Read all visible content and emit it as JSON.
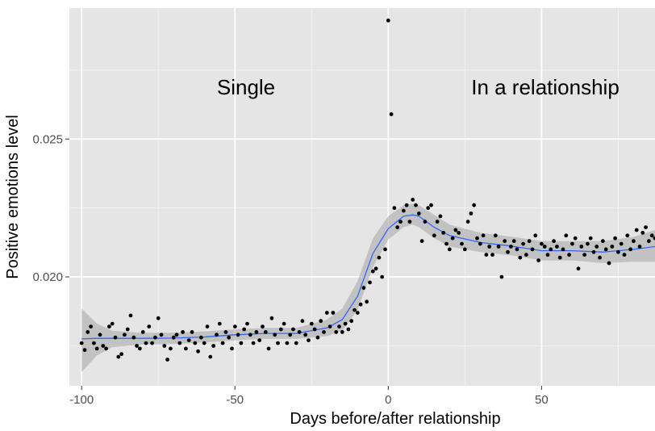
{
  "chart_data": {
    "type": "scatter",
    "xlabel": "Days before/after relationship",
    "ylabel": "Positive emotions level",
    "xlim": [
      -104,
      87
    ],
    "ylim": [
      0.01605,
      0.02975
    ],
    "x_ticks": [
      -100,
      -50,
      0,
      50
    ],
    "x_tick_labels": [
      "-100",
      "-50",
      "0",
      "50"
    ],
    "y_ticks": [
      0.02,
      0.025
    ],
    "y_tick_labels": [
      "0.020",
      "0.025"
    ],
    "grid": true,
    "annotations": [
      {
        "text": "Single",
        "x": -50,
        "y": 0.0277
      },
      {
        "text": "In a relationship",
        "x": 43,
        "y": 0.0277
      }
    ],
    "colors": {
      "panel": "#e5e5e5",
      "grid_major": "#ffffff",
      "points": "#000000",
      "smooth_line": "#3366ff",
      "ribbon": "#b3b3b3"
    },
    "smooth": {
      "x": [
        -100,
        -95,
        -90,
        -80,
        -70,
        -60,
        -50,
        -40,
        -30,
        -20,
        -15,
        -10,
        -5,
        0,
        5,
        8,
        10,
        15,
        20,
        30,
        40,
        50,
        60,
        70,
        80,
        87
      ],
      "y": [
        0.01775,
        0.01777,
        0.01777,
        0.01777,
        0.01778,
        0.01782,
        0.0179,
        0.01795,
        0.01795,
        0.01815,
        0.01845,
        0.0193,
        0.02085,
        0.02175,
        0.0222,
        0.02225,
        0.0222,
        0.0218,
        0.0215,
        0.02125,
        0.02112,
        0.02095,
        0.02095,
        0.0209,
        0.021,
        0.0211
      ],
      "lower": [
        0.01655,
        0.01715,
        0.01745,
        0.01755,
        0.01757,
        0.01762,
        0.0177,
        0.01775,
        0.01775,
        0.01785,
        0.01805,
        0.0188,
        0.02035,
        0.02135,
        0.0218,
        0.0219,
        0.0218,
        0.0214,
        0.0211,
        0.0209,
        0.02078,
        0.0206,
        0.0206,
        0.0205,
        0.02055,
        0.02055
      ],
      "upper": [
        0.01885,
        0.0183,
        0.01805,
        0.01797,
        0.01798,
        0.01802,
        0.0181,
        0.01815,
        0.01815,
        0.01845,
        0.01885,
        0.01985,
        0.0214,
        0.0222,
        0.0226,
        0.02265,
        0.0226,
        0.02225,
        0.0219,
        0.0216,
        0.02146,
        0.0213,
        0.0213,
        0.0213,
        0.02145,
        0.0217
      ]
    },
    "points": [
      [
        -100,
        0.0176
      ],
      [
        -99,
        0.01735
      ],
      [
        -98,
        0.018
      ],
      [
        -97,
        0.0182
      ],
      [
        -96,
        0.0176
      ],
      [
        -95,
        0.0174
      ],
      [
        -94,
        0.0179
      ],
      [
        -93,
        0.0175
      ],
      [
        -92,
        0.0174
      ],
      [
        -91,
        0.0182
      ],
      [
        -90,
        0.0183
      ],
      [
        -89,
        0.0178
      ],
      [
        -88,
        0.0171
      ],
      [
        -87,
        0.0172
      ],
      [
        -86,
        0.0179
      ],
      [
        -85,
        0.0181
      ],
      [
        -84,
        0.0186
      ],
      [
        -83,
        0.0178
      ],
      [
        -82,
        0.0175
      ],
      [
        -81,
        0.0174
      ],
      [
        -80,
        0.018
      ],
      [
        -79,
        0.0176
      ],
      [
        -78,
        0.0182
      ],
      [
        -77,
        0.0176
      ],
      [
        -76,
        0.0178
      ],
      [
        -75,
        0.0185
      ],
      [
        -74,
        0.0179
      ],
      [
        -73,
        0.0175
      ],
      [
        -72,
        0.017
      ],
      [
        -71,
        0.0174
      ],
      [
        -70,
        0.0178
      ],
      [
        -69,
        0.0179
      ],
      [
        -68,
        0.0176
      ],
      [
        -67,
        0.018
      ],
      [
        -66,
        0.0174
      ],
      [
        -65,
        0.0177
      ],
      [
        -64,
        0.018
      ],
      [
        -63,
        0.0176
      ],
      [
        -62,
        0.0173
      ],
      [
        -61,
        0.0178
      ],
      [
        -60,
        0.0176
      ],
      [
        -59,
        0.0182
      ],
      [
        -58,
        0.0171
      ],
      [
        -57,
        0.0175
      ],
      [
        -56,
        0.0179
      ],
      [
        -55,
        0.0183
      ],
      [
        -54,
        0.0176
      ],
      [
        -53,
        0.018
      ],
      [
        -52,
        0.0178
      ],
      [
        -51,
        0.0174
      ],
      [
        -50,
        0.0182
      ],
      [
        -49,
        0.0179
      ],
      [
        -48,
        0.0176
      ],
      [
        -47,
        0.0181
      ],
      [
        -46,
        0.0183
      ],
      [
        -45,
        0.0179
      ],
      [
        -44,
        0.0176
      ],
      [
        -43,
        0.018
      ],
      [
        -42,
        0.0177
      ],
      [
        -41,
        0.0182
      ],
      [
        -40,
        0.018
      ],
      [
        -39,
        0.0174
      ],
      [
        -38,
        0.0185
      ],
      [
        -37,
        0.0179
      ],
      [
        -36,
        0.0176
      ],
      [
        -35,
        0.0181
      ],
      [
        -34,
        0.0183
      ],
      [
        -33,
        0.0176
      ],
      [
        -32,
        0.0179
      ],
      [
        -31,
        0.0181
      ],
      [
        -30,
        0.0176
      ],
      [
        -29,
        0.018
      ],
      [
        -28,
        0.0184
      ],
      [
        -27,
        0.0179
      ],
      [
        -26,
        0.0177
      ],
      [
        -25,
        0.0183
      ],
      [
        -24,
        0.0181
      ],
      [
        -23,
        0.0178
      ],
      [
        -22,
        0.0184
      ],
      [
        -21,
        0.018
      ],
      [
        -20,
        0.0187
      ],
      [
        -19,
        0.0182
      ],
      [
        -18,
        0.0187
      ],
      [
        -17,
        0.018
      ],
      [
        -16,
        0.0182
      ],
      [
        -15,
        0.018
      ],
      [
        -14,
        0.0183
      ],
      [
        -13,
        0.0181
      ],
      [
        -12,
        0.0184
      ],
      [
        -11,
        0.0188
      ],
      [
        -10,
        0.0187
      ],
      [
        -9,
        0.019
      ],
      [
        -8,
        0.0196
      ],
      [
        -7,
        0.0191
      ],
      [
        -6,
        0.0198
      ],
      [
        -5,
        0.0202
      ],
      [
        -4,
        0.0203
      ],
      [
        -3,
        0.0207
      ],
      [
        -2,
        0.02
      ],
      [
        -1,
        0.021
      ],
      [
        0,
        0.0293
      ],
      [
        1,
        0.0259
      ],
      [
        2,
        0.0225
      ],
      [
        3,
        0.0218
      ],
      [
        4,
        0.022
      ],
      [
        5,
        0.0224
      ],
      [
        6,
        0.0226
      ],
      [
        7,
        0.022
      ],
      [
        8,
        0.0228
      ],
      [
        9,
        0.0226
      ],
      [
        10,
        0.0223
      ],
      [
        11,
        0.0213
      ],
      [
        12,
        0.022
      ],
      [
        13,
        0.0225
      ],
      [
        14,
        0.0226
      ],
      [
        15,
        0.0215
      ],
      [
        16,
        0.022
      ],
      [
        17,
        0.0222
      ],
      [
        18,
        0.0216
      ],
      [
        19,
        0.0212
      ],
      [
        20,
        0.021
      ],
      [
        21,
        0.0214
      ],
      [
        22,
        0.0217
      ],
      [
        23,
        0.0216
      ],
      [
        24,
        0.0212
      ],
      [
        25,
        0.021
      ],
      [
        26,
        0.022
      ],
      [
        27,
        0.0223
      ],
      [
        28,
        0.0226
      ],
      [
        29,
        0.0214
      ],
      [
        30,
        0.0212
      ],
      [
        31,
        0.0215
      ],
      [
        32,
        0.0208
      ],
      [
        33,
        0.0211
      ],
      [
        34,
        0.0208
      ],
      [
        35,
        0.0215
      ],
      [
        36,
        0.0211
      ],
      [
        37,
        0.02
      ],
      [
        38,
        0.0213
      ],
      [
        39,
        0.0209
      ],
      [
        40,
        0.0211
      ],
      [
        41,
        0.0213
      ],
      [
        42,
        0.021
      ],
      [
        43,
        0.0207
      ],
      [
        44,
        0.0212
      ],
      [
        45,
        0.0208
      ],
      [
        46,
        0.0213
      ],
      [
        47,
        0.021
      ],
      [
        48,
        0.0215
      ],
      [
        49,
        0.0206
      ],
      [
        50,
        0.0212
      ],
      [
        51,
        0.0211
      ],
      [
        52,
        0.0208
      ],
      [
        53,
        0.021
      ],
      [
        54,
        0.0213
      ],
      [
        55,
        0.0211
      ],
      [
        56,
        0.0207
      ],
      [
        57,
        0.021
      ],
      [
        58,
        0.0215
      ],
      [
        59,
        0.0208
      ],
      [
        60,
        0.0212
      ],
      [
        61,
        0.0214
      ],
      [
        62,
        0.0203
      ],
      [
        63,
        0.0211
      ],
      [
        64,
        0.0208
      ],
      [
        65,
        0.0212
      ],
      [
        66,
        0.0214
      ],
      [
        67,
        0.0209
      ],
      [
        68,
        0.0211
      ],
      [
        69,
        0.0207
      ],
      [
        70,
        0.0213
      ],
      [
        71,
        0.021
      ],
      [
        72,
        0.0205
      ],
      [
        73,
        0.0211
      ],
      [
        74,
        0.0214
      ],
      [
        75,
        0.0209
      ],
      [
        76,
        0.0212
      ],
      [
        77,
        0.0208
      ],
      [
        78,
        0.0215
      ],
      [
        79,
        0.021
      ],
      [
        80,
        0.0213
      ],
      [
        81,
        0.0217
      ],
      [
        82,
        0.0211
      ],
      [
        83,
        0.0216
      ],
      [
        84,
        0.0218
      ],
      [
        85,
        0.0213
      ],
      [
        86,
        0.0215
      ],
      [
        87,
        0.0214
      ]
    ]
  }
}
